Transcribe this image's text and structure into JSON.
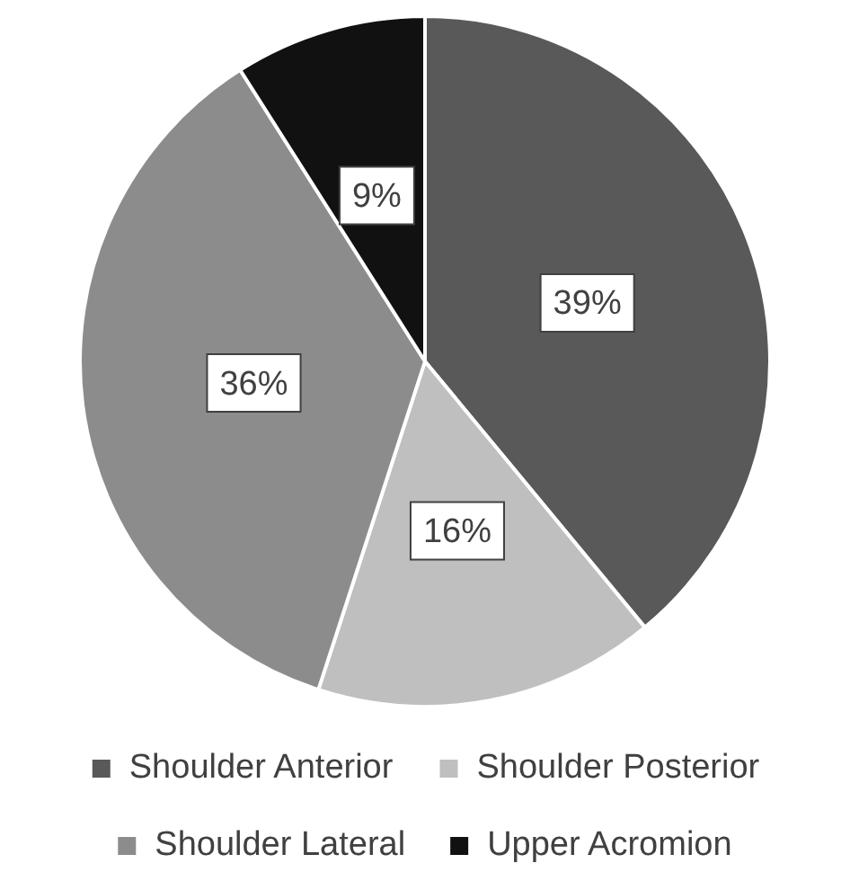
{
  "chart_data": {
    "type": "pie",
    "categories": [
      "Shoulder Anterior",
      "Shoulder Posterior",
      "Shoulder Lateral",
      "Upper Acromion"
    ],
    "values": [
      39,
      16,
      36,
      9
    ],
    "colors": [
      "#595959",
      "#bfbfbf",
      "#8c8c8c",
      "#111111"
    ],
    "value_labels": [
      "39%",
      "16%",
      "36%",
      "9%"
    ],
    "legend": "bottom"
  }
}
